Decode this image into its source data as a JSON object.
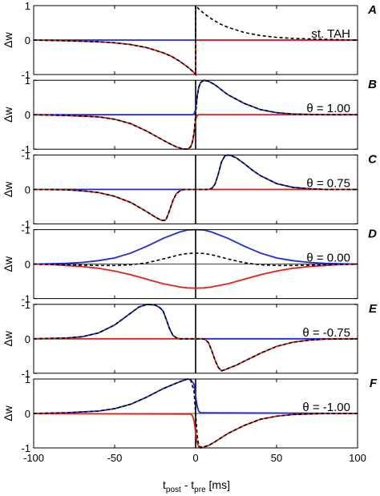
{
  "figure": {
    "xlabel_main": "t",
    "xlabel_sub1": "post",
    "xlabel_mid": " - t",
    "xlabel_sub2": "pre",
    "xlabel_unit": " [ms]",
    "xticks": [
      -100,
      -50,
      0,
      50,
      100
    ]
  },
  "colors": {
    "blue": "#1f2bd6",
    "red": "#e0241b",
    "black": "#000000"
  },
  "chart_data": [
    {
      "panel": "A",
      "type": "line",
      "label": "st. TAH",
      "ylabel": "Δw",
      "xlim": [
        -100,
        100
      ],
      "ylim": [
        -1,
        1
      ],
      "yticks": [
        1,
        0,
        -1
      ],
      "series": [
        {
          "color": "blue",
          "x": [
            -100,
            0,
            0.01,
            100
          ],
          "y": [
            0,
            0,
            0,
            0
          ]
        },
        {
          "color": "red",
          "x": [
            -100,
            -80,
            -60,
            -50,
            -40,
            -30,
            -20,
            -15,
            -10,
            -5,
            -2,
            0,
            0.01,
            100
          ],
          "y": [
            0,
            -0.02,
            -0.05,
            -0.08,
            -0.13,
            -0.22,
            -0.37,
            -0.47,
            -0.61,
            -0.78,
            -0.9,
            -1,
            0,
            0
          ]
        },
        {
          "color": "black",
          "dash": true,
          "x": [
            -100,
            -80,
            -60,
            -50,
            -40,
            -30,
            -20,
            -15,
            -10,
            -5,
            -2,
            0,
            0.01,
            2,
            5,
            10,
            15,
            20,
            30,
            40,
            50,
            60,
            80,
            100
          ],
          "y": [
            0,
            -0.02,
            -0.05,
            -0.08,
            -0.13,
            -0.22,
            -0.37,
            -0.47,
            -0.61,
            -0.78,
            -0.9,
            -1,
            1,
            0.9,
            0.78,
            0.61,
            0.47,
            0.37,
            0.22,
            0.13,
            0.08,
            0.05,
            0.02,
            0
          ]
        }
      ]
    },
    {
      "panel": "B",
      "type": "line",
      "label": "θ = 1.00",
      "ylabel": "Δw",
      "xlim": [
        -100,
        100
      ],
      "ylim": [
        -1,
        1
      ],
      "yticks": [
        1,
        0,
        -1
      ],
      "series": [
        {
          "color": "blue",
          "x": [
            -100,
            -2,
            -1,
            0,
            1,
            2,
            3,
            5,
            8,
            12,
            16,
            20,
            30,
            40,
            50,
            60,
            80,
            100
          ],
          "y": [
            0,
            0,
            0.02,
            0.15,
            0.55,
            0.8,
            0.93,
            1,
            0.97,
            0.87,
            0.72,
            0.58,
            0.33,
            0.15,
            0.06,
            0.02,
            0,
            0
          ]
        },
        {
          "color": "red",
          "x": [
            -100,
            -80,
            -60,
            -50,
            -40,
            -30,
            -20,
            -16,
            -12,
            -8,
            -5,
            -3,
            -2,
            -1,
            0,
            1,
            2,
            100
          ],
          "y": [
            0,
            -0.02,
            -0.06,
            -0.13,
            -0.26,
            -0.48,
            -0.74,
            -0.84,
            -0.93,
            -0.99,
            -1,
            -0.93,
            -0.8,
            -0.55,
            -0.15,
            -0.02,
            0,
            0
          ]
        },
        {
          "color": "black",
          "dash": true,
          "x": [
            -100,
            -80,
            -60,
            -50,
            -40,
            -30,
            -20,
            -16,
            -12,
            -8,
            -5,
            -3,
            -2,
            -1,
            0,
            1,
            2,
            3,
            5,
            8,
            12,
            16,
            20,
            30,
            40,
            50,
            60,
            80,
            100
          ],
          "y": [
            0,
            -0.02,
            -0.06,
            -0.13,
            -0.26,
            -0.48,
            -0.74,
            -0.84,
            -0.93,
            -0.99,
            -1,
            -0.93,
            -0.78,
            -0.53,
            0,
            0.53,
            0.8,
            0.93,
            1,
            0.97,
            0.87,
            0.72,
            0.58,
            0.33,
            0.15,
            0.06,
            0.02,
            0,
            0
          ]
        }
      ]
    },
    {
      "panel": "C",
      "type": "line",
      "label": "θ = 0.75",
      "ylabel": "Δw",
      "xlim": [
        -100,
        100
      ],
      "ylim": [
        -1,
        1
      ],
      "yticks": [
        -1,
        0,
        -1
      ],
      "series": [
        {
          "color": "blue",
          "x": [
            -100,
            8,
            10,
            12,
            14,
            16,
            18,
            20,
            22,
            25,
            30,
            35,
            40,
            50,
            60,
            70,
            80,
            100
          ],
          "y": [
            0,
            0,
            0.03,
            0.15,
            0.45,
            0.8,
            0.97,
            1,
            0.98,
            0.92,
            0.75,
            0.56,
            0.4,
            0.17,
            0.06,
            0.02,
            0,
            0
          ]
        },
        {
          "color": "red",
          "x": [
            -100,
            -80,
            -70,
            -60,
            -50,
            -40,
            -30,
            -25,
            -21,
            -19,
            -18,
            -16,
            -14,
            -12,
            -10,
            -8,
            -6,
            -4,
            100
          ],
          "y": [
            0,
            -0.01,
            -0.04,
            -0.09,
            -0.2,
            -0.38,
            -0.65,
            -0.8,
            -0.9,
            -0.9,
            -0.85,
            -0.6,
            -0.32,
            -0.13,
            -0.05,
            -0.01,
            0,
            0,
            0
          ]
        },
        {
          "color": "black",
          "dash": true,
          "x": [
            -100,
            -80,
            -70,
            -60,
            -50,
            -40,
            -30,
            -25,
            -21,
            -19,
            -18,
            -16,
            -14,
            -12,
            -10,
            -8,
            -6,
            -4,
            8,
            10,
            12,
            14,
            16,
            18,
            20,
            22,
            25,
            30,
            35,
            40,
            50,
            60,
            70,
            80,
            100
          ],
          "y": [
            0,
            -0.01,
            -0.04,
            -0.09,
            -0.2,
            -0.38,
            -0.65,
            -0.8,
            -0.9,
            -0.9,
            -0.85,
            -0.6,
            -0.32,
            -0.13,
            -0.05,
            -0.01,
            0,
            0,
            0,
            0.03,
            0.15,
            0.45,
            0.8,
            0.97,
            1,
            0.98,
            0.92,
            0.75,
            0.56,
            0.4,
            0.17,
            0.06,
            0.02,
            0,
            0
          ]
        }
      ]
    },
    {
      "panel": "D",
      "type": "line",
      "label": "θ = 0.00",
      "ylabel": "Δw",
      "xlim": [
        -100,
        100
      ],
      "ylim": [
        -1,
        1
      ],
      "yticks": [
        -1,
        0,
        -1
      ],
      "series": [
        {
          "color": "blue",
          "x": [
            -100,
            -90,
            -80,
            -70,
            -60,
            -50,
            -40,
            -30,
            -20,
            -10,
            -5,
            0,
            5,
            10,
            20,
            30,
            40,
            50,
            60,
            70,
            80,
            90,
            100
          ],
          "y": [
            0,
            0.01,
            0.02,
            0.05,
            0.1,
            0.18,
            0.32,
            0.52,
            0.75,
            0.93,
            0.99,
            1,
            0.99,
            0.93,
            0.75,
            0.52,
            0.32,
            0.18,
            0.1,
            0.05,
            0.02,
            0.01,
            0
          ]
        },
        {
          "color": "red",
          "x": [
            -100,
            -90,
            -80,
            -70,
            -60,
            -50,
            -40,
            -30,
            -20,
            -10,
            -5,
            0,
            5,
            10,
            20,
            30,
            40,
            50,
            60,
            70,
            80,
            90,
            100
          ],
          "y": [
            0,
            -0.01,
            -0.04,
            -0.07,
            -0.12,
            -0.2,
            -0.31,
            -0.44,
            -0.57,
            -0.66,
            -0.69,
            -0.7,
            -0.69,
            -0.66,
            -0.57,
            -0.44,
            -0.31,
            -0.2,
            -0.12,
            -0.07,
            -0.04,
            -0.01,
            0
          ]
        },
        {
          "color": "black",
          "dash": true,
          "x": [
            -100,
            -80,
            -60,
            -50,
            -40,
            -30,
            -20,
            -10,
            -5,
            0,
            5,
            10,
            20,
            30,
            40,
            50,
            60,
            80,
            100
          ],
          "y": [
            0,
            -0.02,
            -0.04,
            -0.04,
            -0.02,
            0.04,
            0.15,
            0.27,
            0.31,
            0.32,
            0.31,
            0.27,
            0.15,
            0.04,
            -0.02,
            -0.04,
            -0.04,
            -0.02,
            0
          ]
        }
      ]
    },
    {
      "panel": "E",
      "type": "line",
      "label": "θ = -0.75",
      "ylabel": "Δw",
      "xlim": [
        -100,
        100
      ],
      "ylim": [
        -1,
        1
      ],
      "yticks": [
        -1,
        0,
        -1
      ],
      "series": [
        {
          "color": "blue",
          "x": [
            -100,
            -80,
            -70,
            -60,
            -50,
            -40,
            -35,
            -30,
            -25,
            -22,
            -20,
            -18,
            -16,
            -14,
            -12,
            -10,
            -8,
            -6,
            100
          ],
          "y": [
            0,
            0.02,
            0.06,
            0.17,
            0.4,
            0.75,
            0.92,
            1,
            0.98,
            0.9,
            0.8,
            0.55,
            0.28,
            0.1,
            0.03,
            0,
            0,
            0,
            0
          ]
        },
        {
          "color": "red",
          "x": [
            -100,
            4,
            6,
            8,
            10,
            12,
            14,
            16,
            18,
            20,
            25,
            30,
            40,
            50,
            60,
            70,
            80,
            100
          ],
          "y": [
            0,
            0,
            -0.02,
            -0.12,
            -0.35,
            -0.62,
            -0.83,
            -0.93,
            -0.9,
            -0.86,
            -0.77,
            -0.65,
            -0.42,
            -0.22,
            -0.1,
            -0.04,
            -0.01,
            0
          ]
        },
        {
          "color": "black",
          "dash": true,
          "x": [
            -100,
            -80,
            -70,
            -60,
            -50,
            -40,
            -35,
            -30,
            -25,
            -22,
            -20,
            -18,
            -16,
            -14,
            -12,
            -10,
            -8,
            -6,
            4,
            6,
            8,
            10,
            12,
            14,
            16,
            18,
            20,
            25,
            30,
            40,
            50,
            60,
            70,
            80,
            100
          ],
          "y": [
            0,
            0.02,
            0.06,
            0.17,
            0.4,
            0.75,
            0.92,
            1,
            0.98,
            0.9,
            0.8,
            0.55,
            0.28,
            0.1,
            0.03,
            0,
            0,
            0,
            0,
            -0.02,
            -0.12,
            -0.35,
            -0.62,
            -0.83,
            -0.93,
            -0.9,
            -0.86,
            -0.77,
            -0.65,
            -0.42,
            -0.22,
            -0.1,
            -0.04,
            -0.01,
            0
          ]
        }
      ]
    },
    {
      "panel": "F",
      "type": "line",
      "label": "θ = -1.00",
      "ylabel": "Δw",
      "xlim": [
        -100,
        100
      ],
      "ylim": [
        -1,
        1
      ],
      "yticks": [
        1,
        0,
        -1
      ],
      "series": [
        {
          "color": "blue",
          "x": [
            -100,
            -80,
            -60,
            -50,
            -40,
            -30,
            -20,
            -12,
            -8,
            -5,
            -3,
            -1,
            0,
            1,
            2,
            3,
            5,
            100
          ],
          "y": [
            0,
            0.02,
            0.07,
            0.14,
            0.27,
            0.48,
            0.72,
            0.88,
            0.95,
            1,
            0.98,
            0.85,
            0.5,
            0.2,
            0.06,
            0.02,
            0.02,
            0
          ]
        },
        {
          "color": "red",
          "x": [
            -100,
            -3,
            -2,
            -1,
            0,
            1,
            2,
            3,
            5,
            8,
            12,
            16,
            20,
            30,
            40,
            50,
            60,
            80,
            100
          ],
          "y": [
            0,
            -0.02,
            -0.06,
            -0.2,
            -0.55,
            -0.85,
            -0.98,
            -1,
            -0.98,
            -0.93,
            -0.82,
            -0.7,
            -0.58,
            -0.35,
            -0.17,
            -0.08,
            -0.03,
            0,
            0
          ]
        },
        {
          "color": "black",
          "dash": true,
          "x": [
            -100,
            -80,
            -60,
            -50,
            -40,
            -30,
            -20,
            -12,
            -8,
            -5,
            -3,
            -1,
            0,
            1,
            2,
            3,
            5,
            8,
            12,
            16,
            20,
            30,
            40,
            50,
            60,
            80,
            100
          ],
          "y": [
            0,
            0.02,
            0.07,
            0.14,
            0.27,
            0.48,
            0.72,
            0.88,
            0.95,
            1,
            0.96,
            0.65,
            0,
            -0.65,
            -0.92,
            -0.98,
            -0.96,
            -0.93,
            -0.82,
            -0.7,
            -0.58,
            -0.35,
            -0.17,
            -0.08,
            -0.03,
            0,
            0
          ]
        }
      ]
    }
  ]
}
